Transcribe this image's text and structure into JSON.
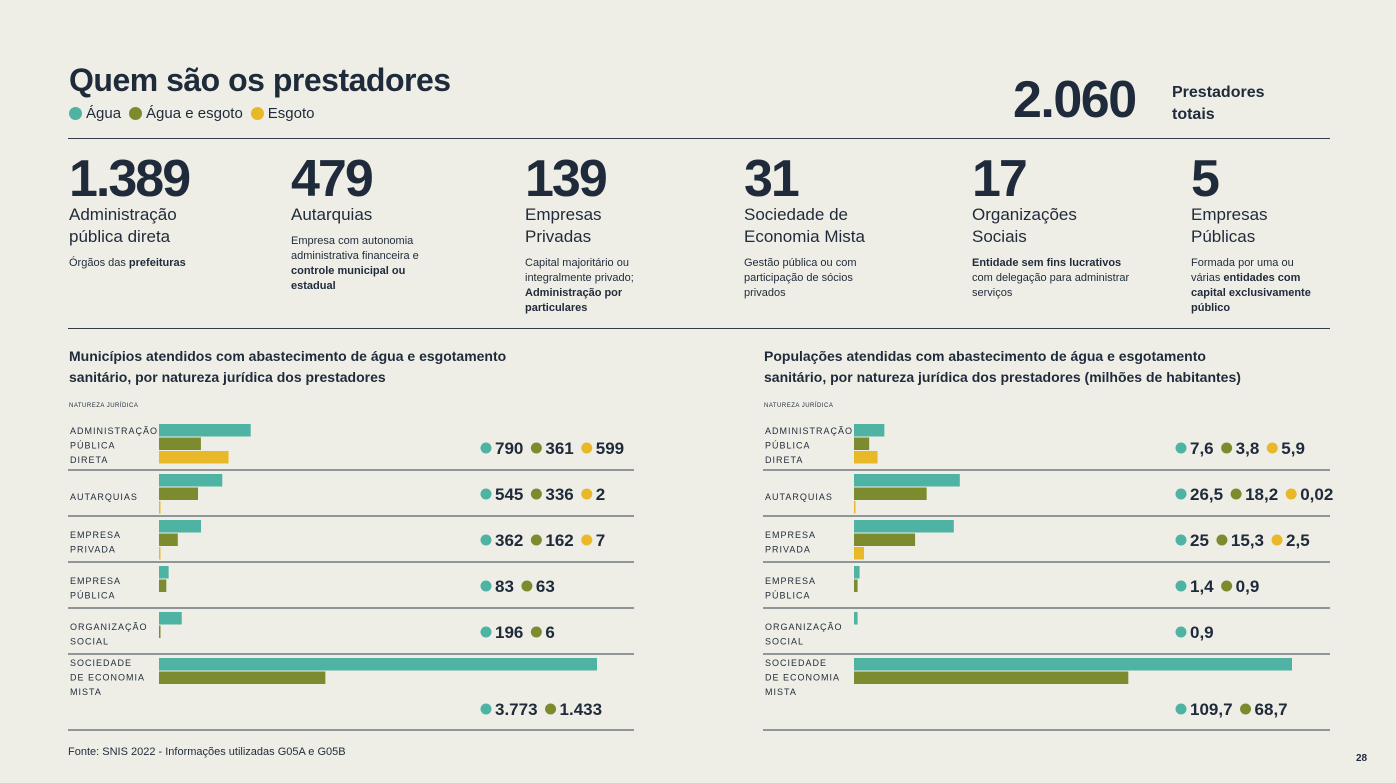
{
  "title": "Quem são os prestadores",
  "legend": [
    {
      "label": "Água",
      "color": "#4FB3A4"
    },
    {
      "label": "Água e esgoto",
      "color": "#7C8B2E"
    },
    {
      "label": "Esgoto",
      "color": "#E8B829"
    }
  ],
  "total": {
    "value": "2.060",
    "label": "Prestadores totais"
  },
  "stats": [
    {
      "value": "1.389",
      "label": "Administração pública direta",
      "desc_parts": [
        {
          "t": "Órgãos das "
        },
        {
          "t": "prefeituras",
          "b": true
        }
      ]
    },
    {
      "value": "479",
      "label": "Autarquias",
      "desc_parts": [
        {
          "t": "Empresa com autonomia administrativa financeira e "
        },
        {
          "t": "controle municipal ou estadual",
          "b": true
        }
      ]
    },
    {
      "value": "139",
      "label": "Empresas Privadas",
      "desc_parts": [
        {
          "t": "Capital majoritário ou integralmente privado; "
        },
        {
          "t": "Administração por particulares",
          "b": true
        }
      ]
    },
    {
      "value": "31",
      "label": "Sociedade de Economia Mista",
      "desc_parts": [
        {
          "t": "Gestão pública ou com participação de sócios privados"
        }
      ]
    },
    {
      "value": "17",
      "label": "Organizações Sociais",
      "desc_parts": [
        {
          "t": "Entidade sem fins lucrativos",
          "b": true
        },
        {
          "t": " com delegação para administrar serviços"
        }
      ]
    },
    {
      "value": "5",
      "label": "Empresas Públicas",
      "desc_parts": [
        {
          "t": "Formada por uma ou várias "
        },
        {
          "t": "entidades com capital exclusivamente público",
          "b": true
        }
      ]
    }
  ],
  "source": "Fonte: SNIS 2022 - Informações utilizadas G05A e G05B",
  "page_number": "28",
  "chart_data": [
    {
      "type": "bar",
      "orientation": "horizontal",
      "title": "Municípios atendidos com abastecimento de água e esgotamento sanitário, por natureza jurídica dos prestadores",
      "category_axis_label": "NATUREZA JURÍDICA",
      "categories": [
        "ADMINISTRAÇÃO PÚBLICA DIRETA",
        "AUTARQUIAS",
        "EMPRESA PRIVADA",
        "EMPRESA PÚBLICA",
        "ORGANIZAÇÃO SOCIAL",
        "SOCIEDADE DE ECONOMIA MISTA"
      ],
      "series": [
        {
          "name": "Água",
          "color": "#4FB3A4",
          "values": [
            790,
            545,
            362,
            83,
            196,
            3773
          ],
          "labels": [
            "790",
            "545",
            "362",
            "83",
            "196",
            "3.773"
          ]
        },
        {
          "name": "Água e esgoto",
          "color": "#7C8B2E",
          "values": [
            361,
            336,
            162,
            63,
            6,
            1433
          ],
          "labels": [
            "361",
            "336",
            "162",
            "63",
            "6",
            "1.433"
          ]
        },
        {
          "name": "Esgoto",
          "color": "#E8B829",
          "values": [
            599,
            2,
            7,
            null,
            null,
            null
          ],
          "labels": [
            "599",
            "2",
            "7",
            null,
            null,
            null
          ]
        }
      ],
      "xlim": [
        0,
        3773
      ]
    },
    {
      "type": "bar",
      "orientation": "horizontal",
      "title": "Populações atendidas com abastecimento de água e esgotamento sanitário, por natureza jurídica dos prestadores (milhões de habitantes)",
      "category_axis_label": "NATUREZA JURÍDICA",
      "categories": [
        "ADMINISTRAÇÃO PÚBLICA DIRETA",
        "AUTARQUIAS",
        "EMPRESA PRIVADA",
        "EMPRESA PÚBLICA",
        "ORGANIZAÇÃO SOCIAL",
        "SOCIEDADE DE ECONOMIA MISTA"
      ],
      "series": [
        {
          "name": "Água",
          "color": "#4FB3A4",
          "values": [
            7.6,
            26.5,
            25,
            1.4,
            0.9,
            109.7
          ],
          "labels": [
            "7,6",
            "26,5",
            "25",
            "1,4",
            "0,9",
            "109,7"
          ]
        },
        {
          "name": "Água e esgoto",
          "color": "#7C8B2E",
          "values": [
            3.8,
            18.2,
            15.3,
            0.9,
            null,
            68.7
          ],
          "labels": [
            "3,8",
            "18,2",
            "15,3",
            "0,9",
            null,
            "68,7"
          ]
        },
        {
          "name": "Esgoto",
          "color": "#E8B829",
          "values": [
            5.9,
            0.02,
            2.5,
            null,
            null,
            null
          ],
          "labels": [
            "5,9",
            "0,02",
            "2,5",
            null,
            null,
            null
          ]
        }
      ],
      "xlim": [
        0,
        109.7
      ]
    }
  ]
}
